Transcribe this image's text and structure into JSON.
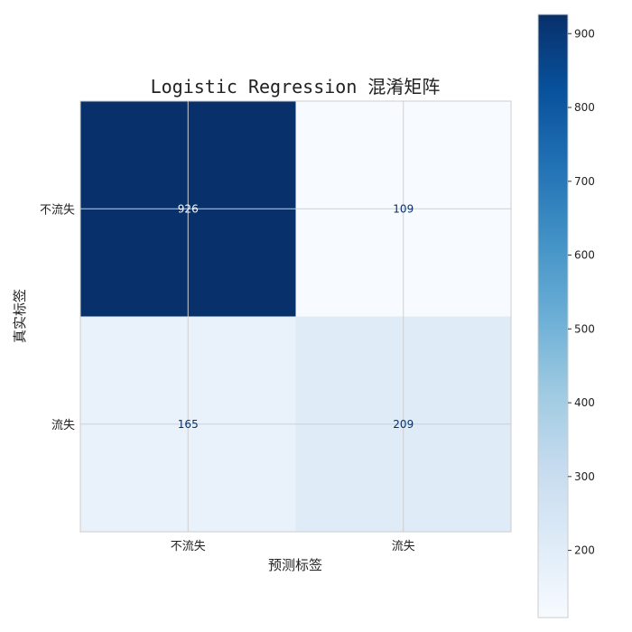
{
  "chart_data": {
    "type": "heatmap",
    "title": "Logistic Regression 混淆矩阵",
    "xlabel": "预测标签",
    "ylabel": "真实标签",
    "x_categories": [
      "不流失",
      "流失"
    ],
    "y_categories": [
      "不流失",
      "流失"
    ],
    "values": [
      [
        926,
        109
      ],
      [
        165,
        209
      ]
    ],
    "colormap": "Blues",
    "color_range": [
      109,
      926
    ],
    "colorbar_ticks": [
      200,
      300,
      400,
      500,
      600,
      700,
      800,
      900
    ],
    "grid": true
  }
}
